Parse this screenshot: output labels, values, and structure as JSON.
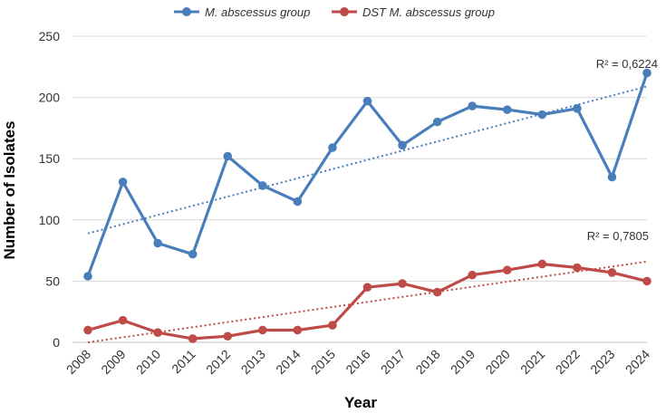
{
  "chart_data": {
    "type": "line",
    "title": "",
    "xlabel": "Year",
    "ylabel": "Number of Isolates",
    "ylim": [
      0,
      250
    ],
    "yticks": [
      0,
      50,
      100,
      150,
      200,
      250
    ],
    "categories": [
      "2008",
      "2009",
      "2010",
      "2011",
      "2012",
      "2013",
      "2014",
      "2015",
      "2016",
      "2017",
      "2018",
      "2019",
      "2020",
      "2021",
      "2022",
      "2023",
      "2024"
    ],
    "series": [
      {
        "name": "M. abscessus group",
        "color": "#4a7ebb",
        "values": [
          54,
          131,
          81,
          72,
          152,
          128,
          115,
          159,
          197,
          161,
          180,
          193,
          190,
          186,
          191,
          135,
          220
        ],
        "trendline": {
          "type": "linear",
          "start": 89,
          "end": 209,
          "r2_label": "R² = 0,6224"
        }
      },
      {
        "name": "DST M. abscessus group",
        "color": "#be4b48",
        "values": [
          10,
          18,
          8,
          3,
          5,
          10,
          10,
          14,
          45,
          48,
          41,
          55,
          59,
          64,
          61,
          57,
          50
        ],
        "trendline": {
          "type": "linear",
          "start": 0,
          "end": 66,
          "r2_label": "R² = 0,7805"
        }
      }
    ],
    "legend": "top",
    "grid": "horizontal"
  }
}
